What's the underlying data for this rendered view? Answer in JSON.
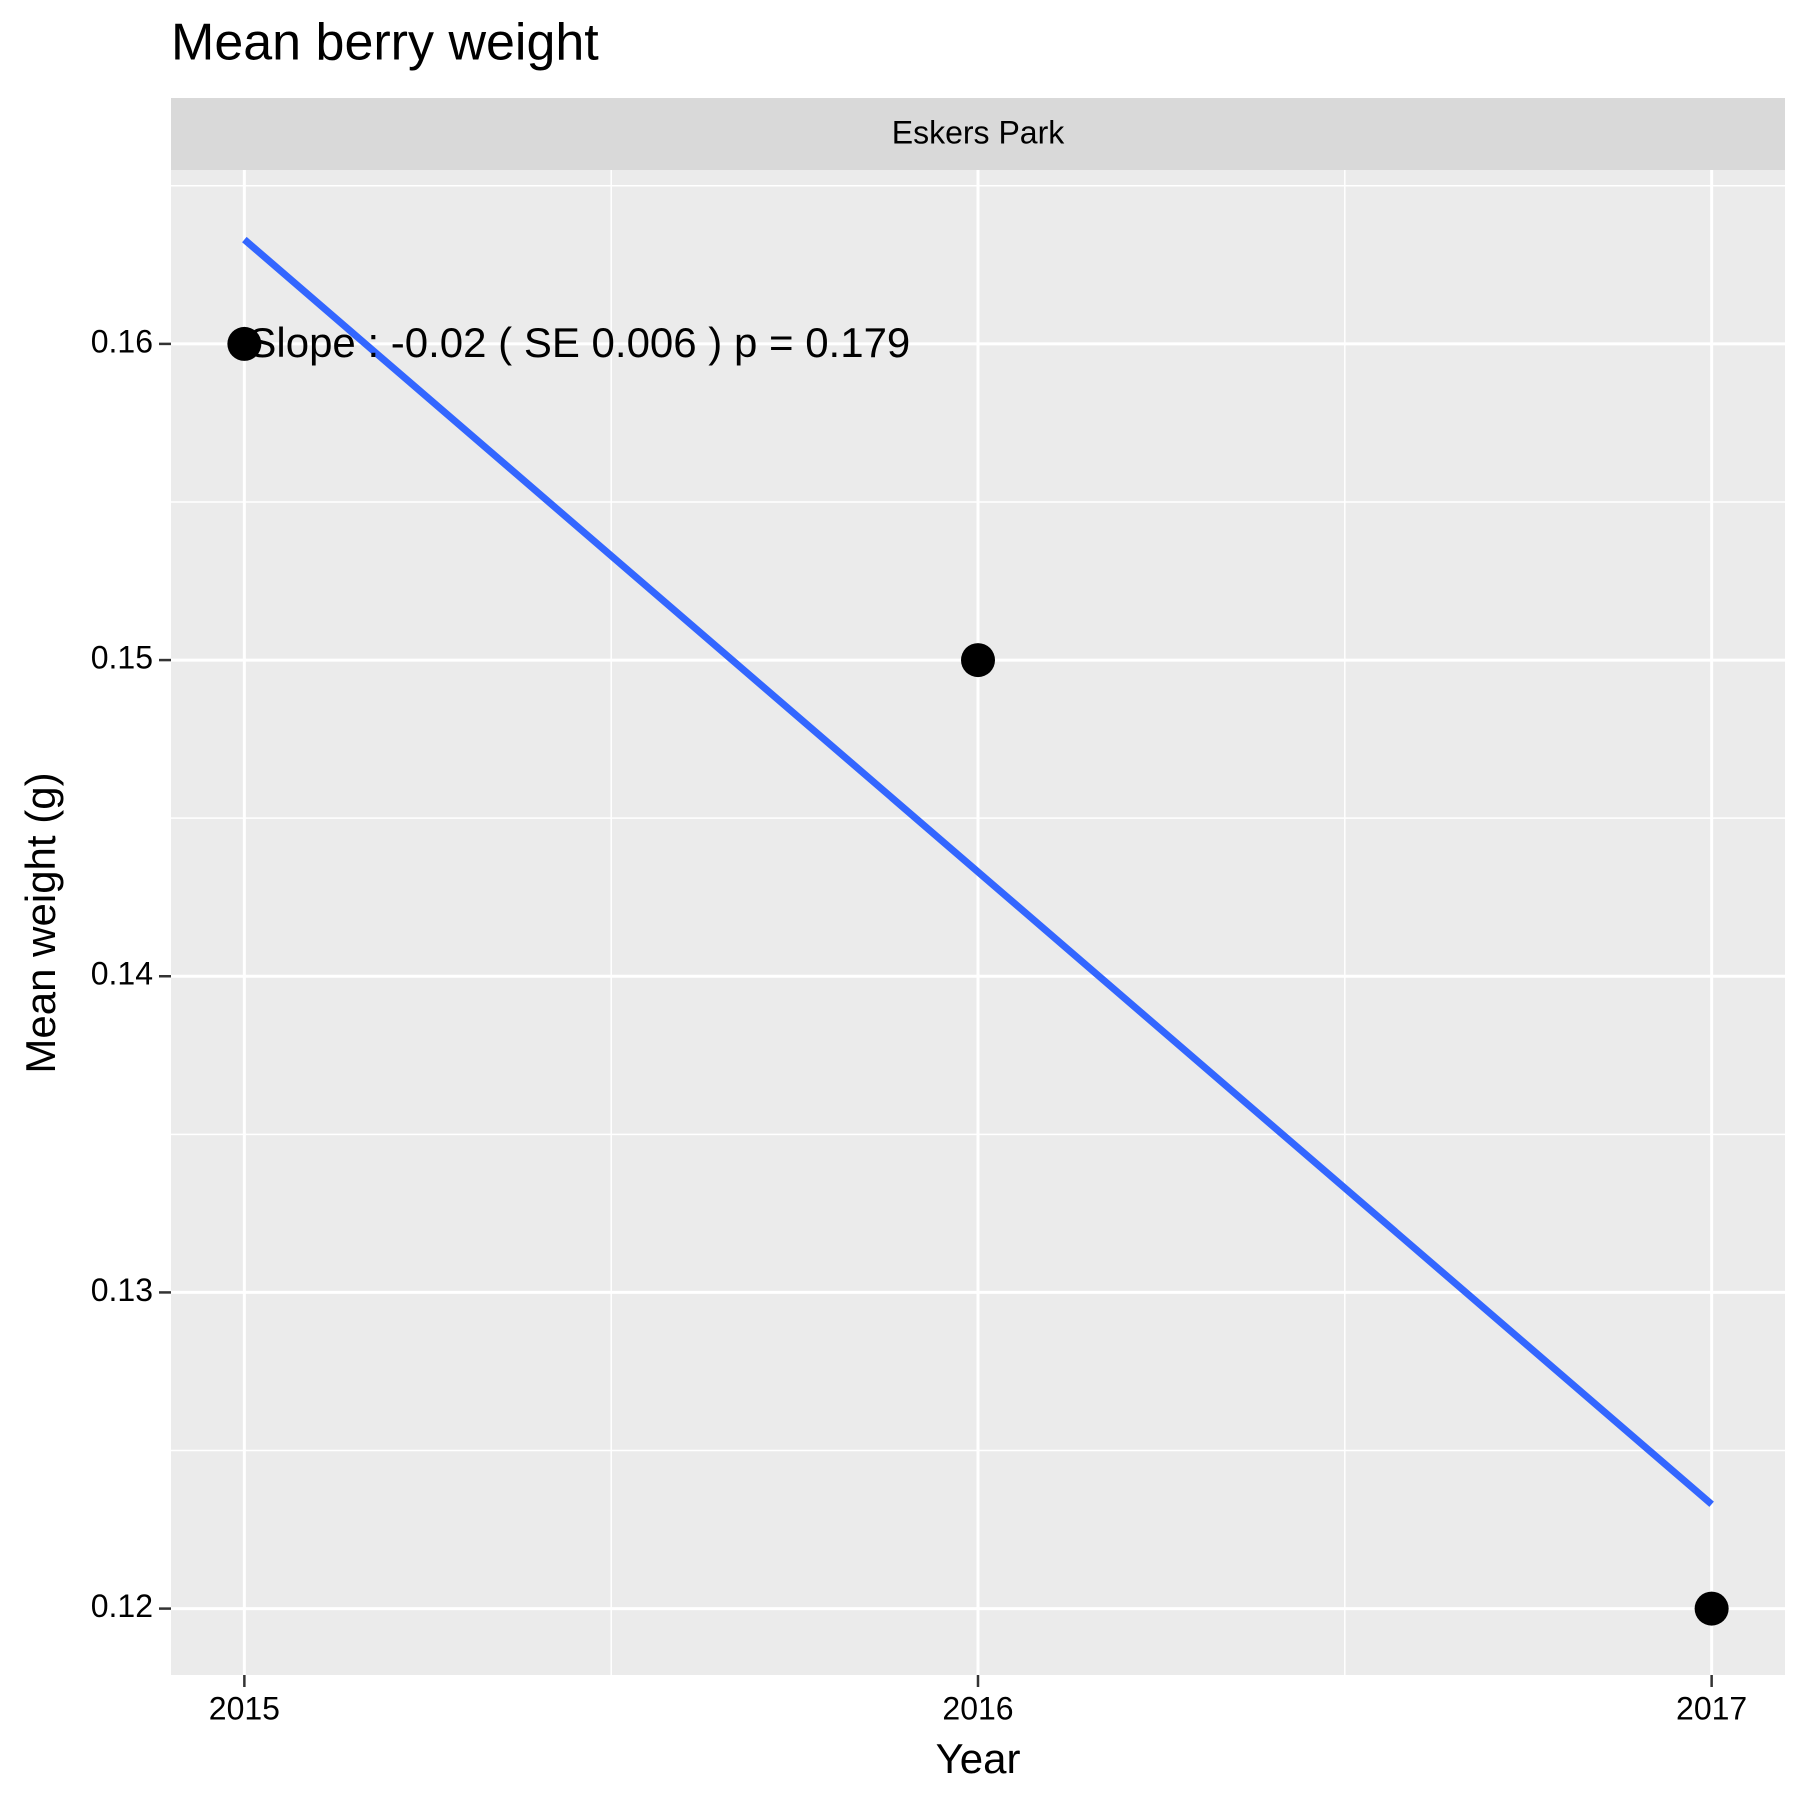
{
  "chart_data": {
    "type": "scatter",
    "title": "Mean berry weight",
    "facet_label": "Eskers Park",
    "x_label": "Year",
    "y_label": "Mean weight (g)",
    "annotation": "Slope :  -0.02  ( SE  0.006 ) p = 0.179",
    "x": [
      2015,
      2016,
      2017
    ],
    "values": [
      0.16,
      0.15,
      0.12
    ],
    "color": "#000000",
    "trend_line": {
      "x": [
        2015,
        2017
      ],
      "values": [
        0.1633,
        0.1233
      ],
      "color": "#3366ff"
    },
    "xlim": [
      2014.9,
      2017.1
    ],
    "xticks": [
      2015,
      2016,
      2017
    ],
    "x_minor_grid": [
      2015.5,
      2016.5
    ],
    "ylim": [
      0.1179,
      0.1655
    ],
    "yticks": [
      0.12,
      0.13,
      0.14,
      0.15,
      0.16
    ],
    "y_minor_grid": [
      0.125,
      0.135,
      0.145,
      0.155,
      0.165
    ],
    "grid": true
  }
}
